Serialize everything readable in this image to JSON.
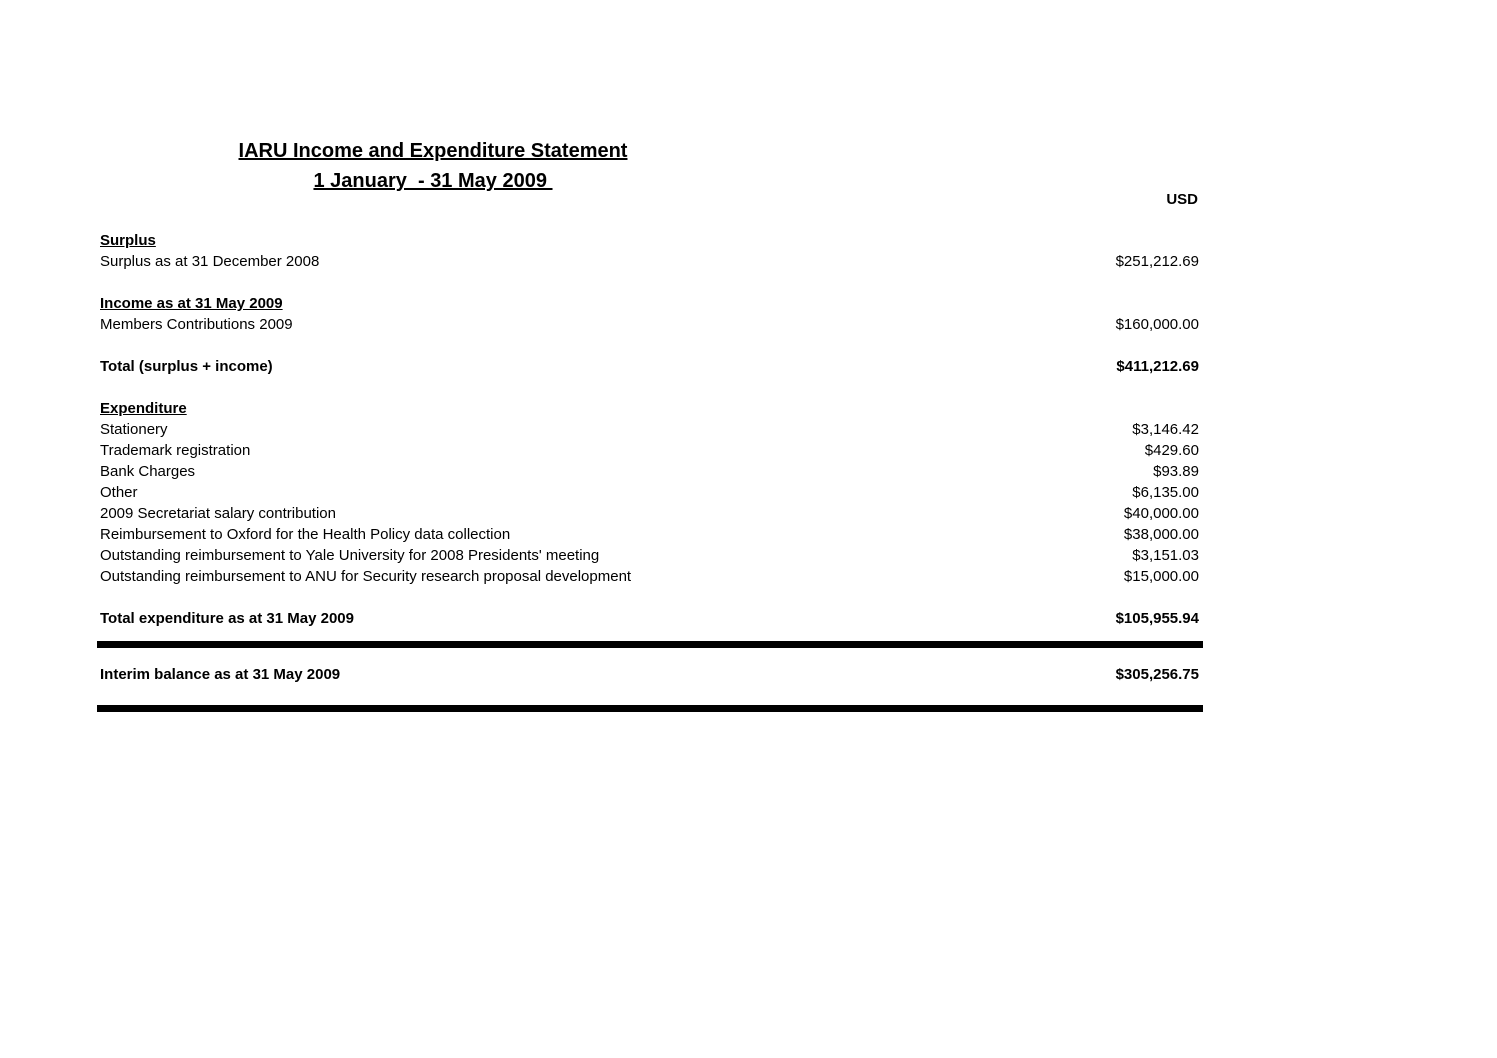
{
  "page": {
    "background_color": "#ffffff",
    "text_color": "#000000",
    "rule_color": "#000000"
  },
  "header": {
    "title_line1": "IARU Income and Expenditure Statement",
    "title_line2": "1 January  - 31 May 2009 ",
    "currency_label": "USD"
  },
  "statement": {
    "rows": [
      {
        "type": "section_heading",
        "label": "Surplus",
        "value": ""
      },
      {
        "type": "item",
        "label": "Surplus as at 31 December 2008",
        "value": "$251,212.69"
      },
      {
        "type": "spacer",
        "label": "",
        "value": ""
      },
      {
        "type": "section_heading",
        "label": "Income as at 31 May 2009",
        "value": ""
      },
      {
        "type": "item",
        "label": "Members Contributions 2009",
        "value": "$160,000.00"
      },
      {
        "type": "spacer",
        "label": "",
        "value": ""
      },
      {
        "type": "total",
        "label": "Total (surplus + income)",
        "value": "$411,212.69"
      },
      {
        "type": "spacer",
        "label": "",
        "value": ""
      },
      {
        "type": "section_heading",
        "label": "Expenditure",
        "value": ""
      },
      {
        "type": "item",
        "label": "Stationery",
        "value": "$3,146.42"
      },
      {
        "type": "item",
        "label": "Trademark registration",
        "value": "$429.60"
      },
      {
        "type": "item",
        "label": "Bank Charges",
        "value": "$93.89"
      },
      {
        "type": "item",
        "label": "Other",
        "value": "$6,135.00"
      },
      {
        "type": "item",
        "label": "2009 Secretariat salary contribution",
        "value": "$40,000.00"
      },
      {
        "type": "item",
        "label": "Reimbursement to Oxford for the Health Policy data collection",
        "value": "$38,000.00"
      },
      {
        "type": "item",
        "label": "Outstanding reimbursement to Yale University for 2008 Presidents' meeting",
        "value": "$3,151.03"
      },
      {
        "type": "item",
        "label": "Outstanding reimbursement to ANU for Security research proposal development",
        "value": "$15,000.00"
      },
      {
        "type": "spacer",
        "label": "",
        "value": ""
      },
      {
        "type": "total",
        "label": "Total expenditure as at 31 May 2009",
        "value": "$105,955.94"
      },
      {
        "type": "rule",
        "label": "",
        "value": ""
      },
      {
        "type": "total",
        "label": "Interim balance as at 31 May 2009",
        "value": "$305,256.75"
      },
      {
        "type": "rule_bottom",
        "label": "",
        "value": ""
      }
    ]
  }
}
